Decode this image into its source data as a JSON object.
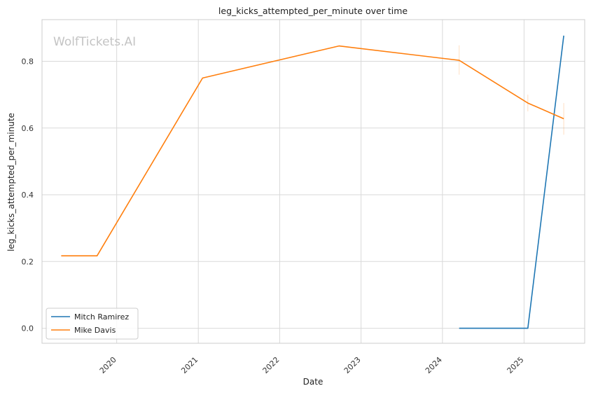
{
  "chart_data": {
    "type": "line",
    "title": "leg_kicks_attempted_per_minute over time",
    "xlabel": "Date",
    "ylabel": "leg_kicks_attempted_per_minute",
    "watermark": "WolfTickets.AI",
    "x_ticks": [
      "2020",
      "2021",
      "2022",
      "2023",
      "2024",
      "2025"
    ],
    "y_ticks": [
      "0.0",
      "0.2",
      "0.4",
      "0.6",
      "0.8"
    ],
    "ylim": [
      -0.045,
      0.925
    ],
    "xlim": [
      "2019-01-31",
      "2025-09-30"
    ],
    "grid": true,
    "legend_position": "bottom-left",
    "series": [
      {
        "name": "Mitch Ramirez",
        "color": "#1f77b4",
        "points": [
          {
            "date": "2024-03-16",
            "value": 0.0
          },
          {
            "date": "2025-01-18",
            "value": 0.0
          },
          {
            "date": "2025-06-28",
            "value": 0.877
          }
        ]
      },
      {
        "name": "Mike Davis",
        "color": "#ff7f0e",
        "points": [
          {
            "date": "2019-04-27",
            "value": 0.217
          },
          {
            "date": "2019-10-05",
            "value": 0.217
          },
          {
            "date": "2021-01-20",
            "value": 0.75
          },
          {
            "date": "2022-09-24",
            "value": 0.846
          },
          {
            "date": "2024-03-16",
            "value": 0.803
          },
          {
            "date": "2025-01-18",
            "value": 0.675
          },
          {
            "date": "2025-06-28",
            "value": 0.628
          }
        ],
        "error_bars": [
          {
            "date": "2024-03-16",
            "low": 0.76,
            "high": 0.848
          },
          {
            "date": "2025-01-18",
            "low": 0.65,
            "high": 0.7
          },
          {
            "date": "2025-06-28",
            "low": 0.58,
            "high": 0.675
          }
        ]
      }
    ]
  }
}
